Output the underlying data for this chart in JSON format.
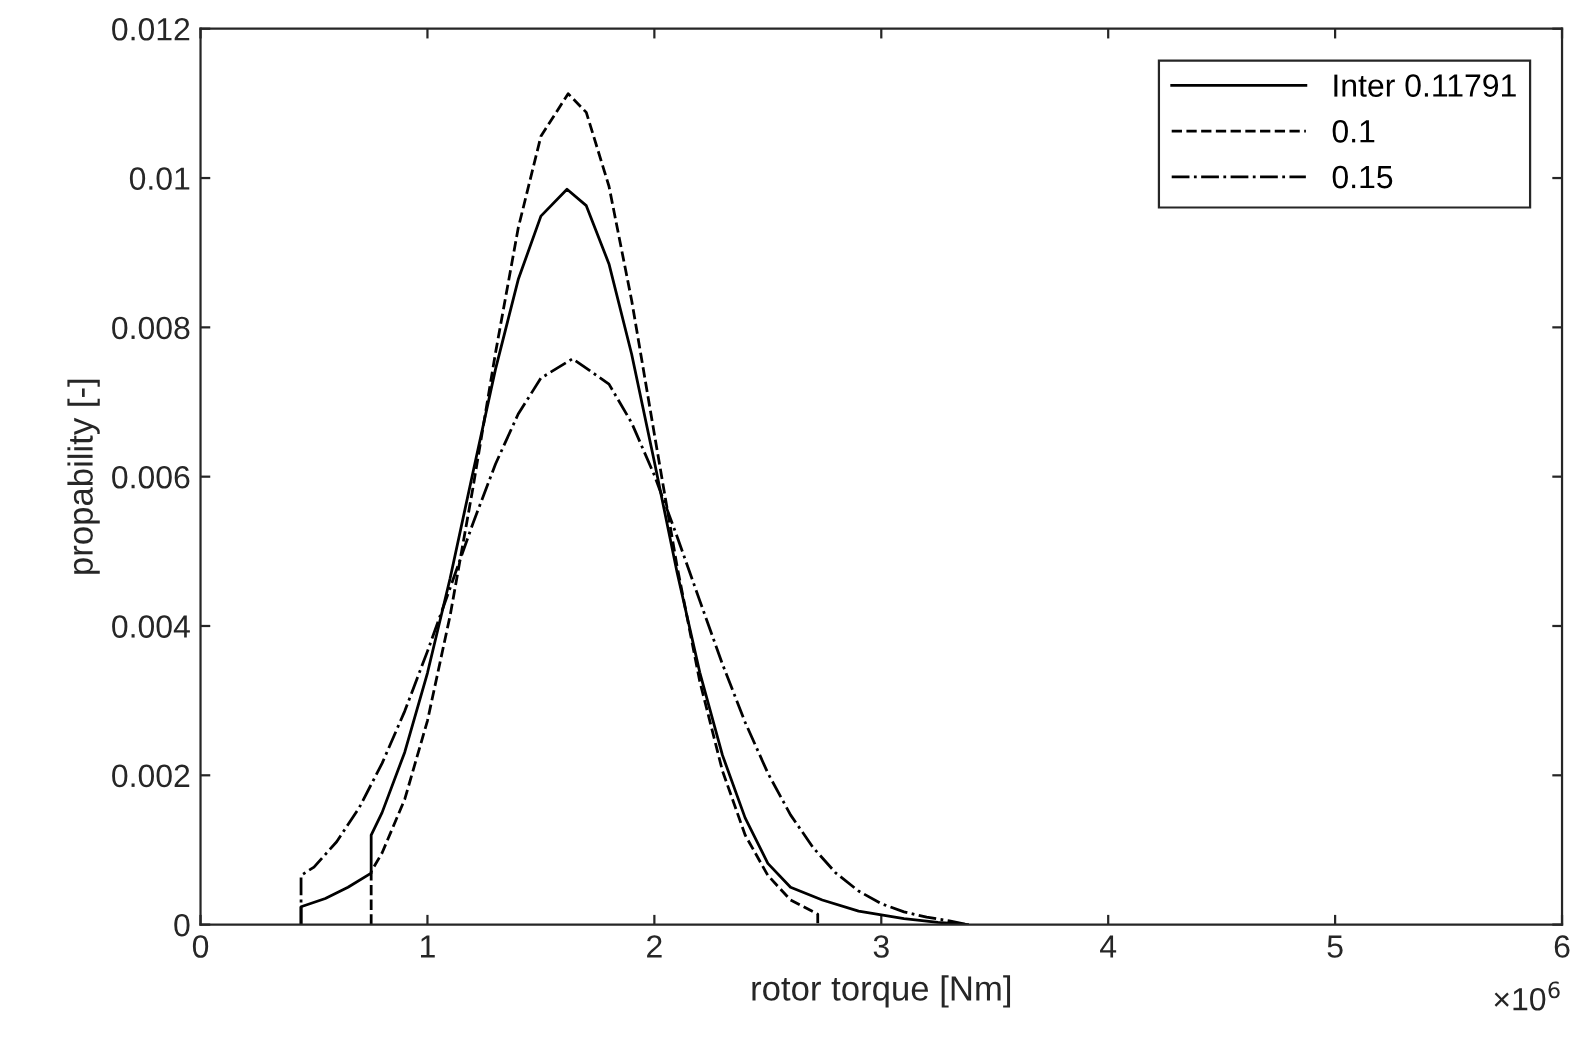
{
  "chart_data": {
    "type": "line",
    "xlabel": "rotor torque [Nm]",
    "ylabel": "propability [-]",
    "xlim": [
      0,
      6
    ],
    "xticks": [
      0,
      1,
      2,
      3,
      4,
      5,
      6
    ],
    "ylim": [
      0,
      0.012
    ],
    "yticks": [
      0,
      0.002,
      0.004,
      0.006,
      0.008,
      0.01,
      0.012
    ],
    "grid": false,
    "legend": "top right",
    "annotations": [
      "×10$^{6}$"
    ],
    "series": [
      {
        "name": "Inter 0.11791",
        "color": "#000000",
        "line_style": "solid",
        "x": [
          0.443,
          0.443,
          0.55,
          0.65,
          0.752,
          0.752,
          0.8,
          0.9,
          1.0,
          1.1,
          1.2,
          1.3,
          1.4,
          1.5,
          1.615,
          1.7,
          1.8,
          1.9,
          2.0,
          2.1,
          2.2,
          2.3,
          2.4,
          2.5,
          2.6,
          2.74,
          2.9,
          3.1,
          3.25,
          3.38
        ],
        "values": [
          0,
          0.00024,
          0.00035,
          0.0005,
          0.00069,
          0.0012,
          0.0015,
          0.00231,
          0.00337,
          0.00464,
          0.00605,
          0.00744,
          0.00864,
          0.00949,
          0.00985,
          0.00963,
          0.00885,
          0.00764,
          0.0062,
          0.00472,
          0.00338,
          0.00227,
          0.00143,
          0.00082,
          0.0005,
          0.00033,
          0.00018,
          8e-05,
          3e-05,
          0
        ]
      },
      {
        "name": "0.1",
        "color": "#000000",
        "line_style": "dashed",
        "x": [
          0.752,
          0.752,
          0.8,
          0.9,
          1.0,
          1.1,
          1.2,
          1.3,
          1.4,
          1.5,
          1.62,
          1.7,
          1.8,
          1.9,
          2.0,
          2.1,
          2.2,
          2.3,
          2.4,
          2.5,
          2.6,
          2.72,
          2.72
        ],
        "values": [
          0,
          0.00071,
          0.00096,
          0.00168,
          0.00273,
          0.00414,
          0.00584,
          0.00766,
          0.00933,
          0.01056,
          0.01113,
          0.01088,
          0.00989,
          0.00836,
          0.00657,
          0.0048,
          0.00326,
          0.00206,
          0.0012,
          0.00066,
          0.00033,
          0.00014,
          0
        ]
      },
      {
        "name": "0.15",
        "color": "#000000",
        "line_style": "dashdot",
        "x": [
          0.443,
          0.443,
          0.5,
          0.6,
          0.7,
          0.8,
          0.9,
          1.0,
          1.1,
          1.2,
          1.3,
          1.4,
          1.5,
          1.64,
          1.8,
          1.9,
          2.0,
          2.1,
          2.2,
          2.3,
          2.4,
          2.5,
          2.6,
          2.7,
          2.8,
          2.9,
          3.0,
          3.1,
          3.2,
          3.3,
          3.38
        ],
        "values": [
          0,
          0.00066,
          0.00077,
          0.00111,
          0.00157,
          0.00216,
          0.00286,
          0.00366,
          0.00451,
          0.00537,
          0.00617,
          0.00684,
          0.00732,
          0.00758,
          0.00724,
          0.00672,
          0.00602,
          0.0052,
          0.00434,
          0.00349,
          0.00271,
          0.00203,
          0.00147,
          0.00103,
          0.00069,
          0.00045,
          0.00028,
          0.00017,
          0.0001,
          5e-05,
          0
        ]
      }
    ]
  }
}
